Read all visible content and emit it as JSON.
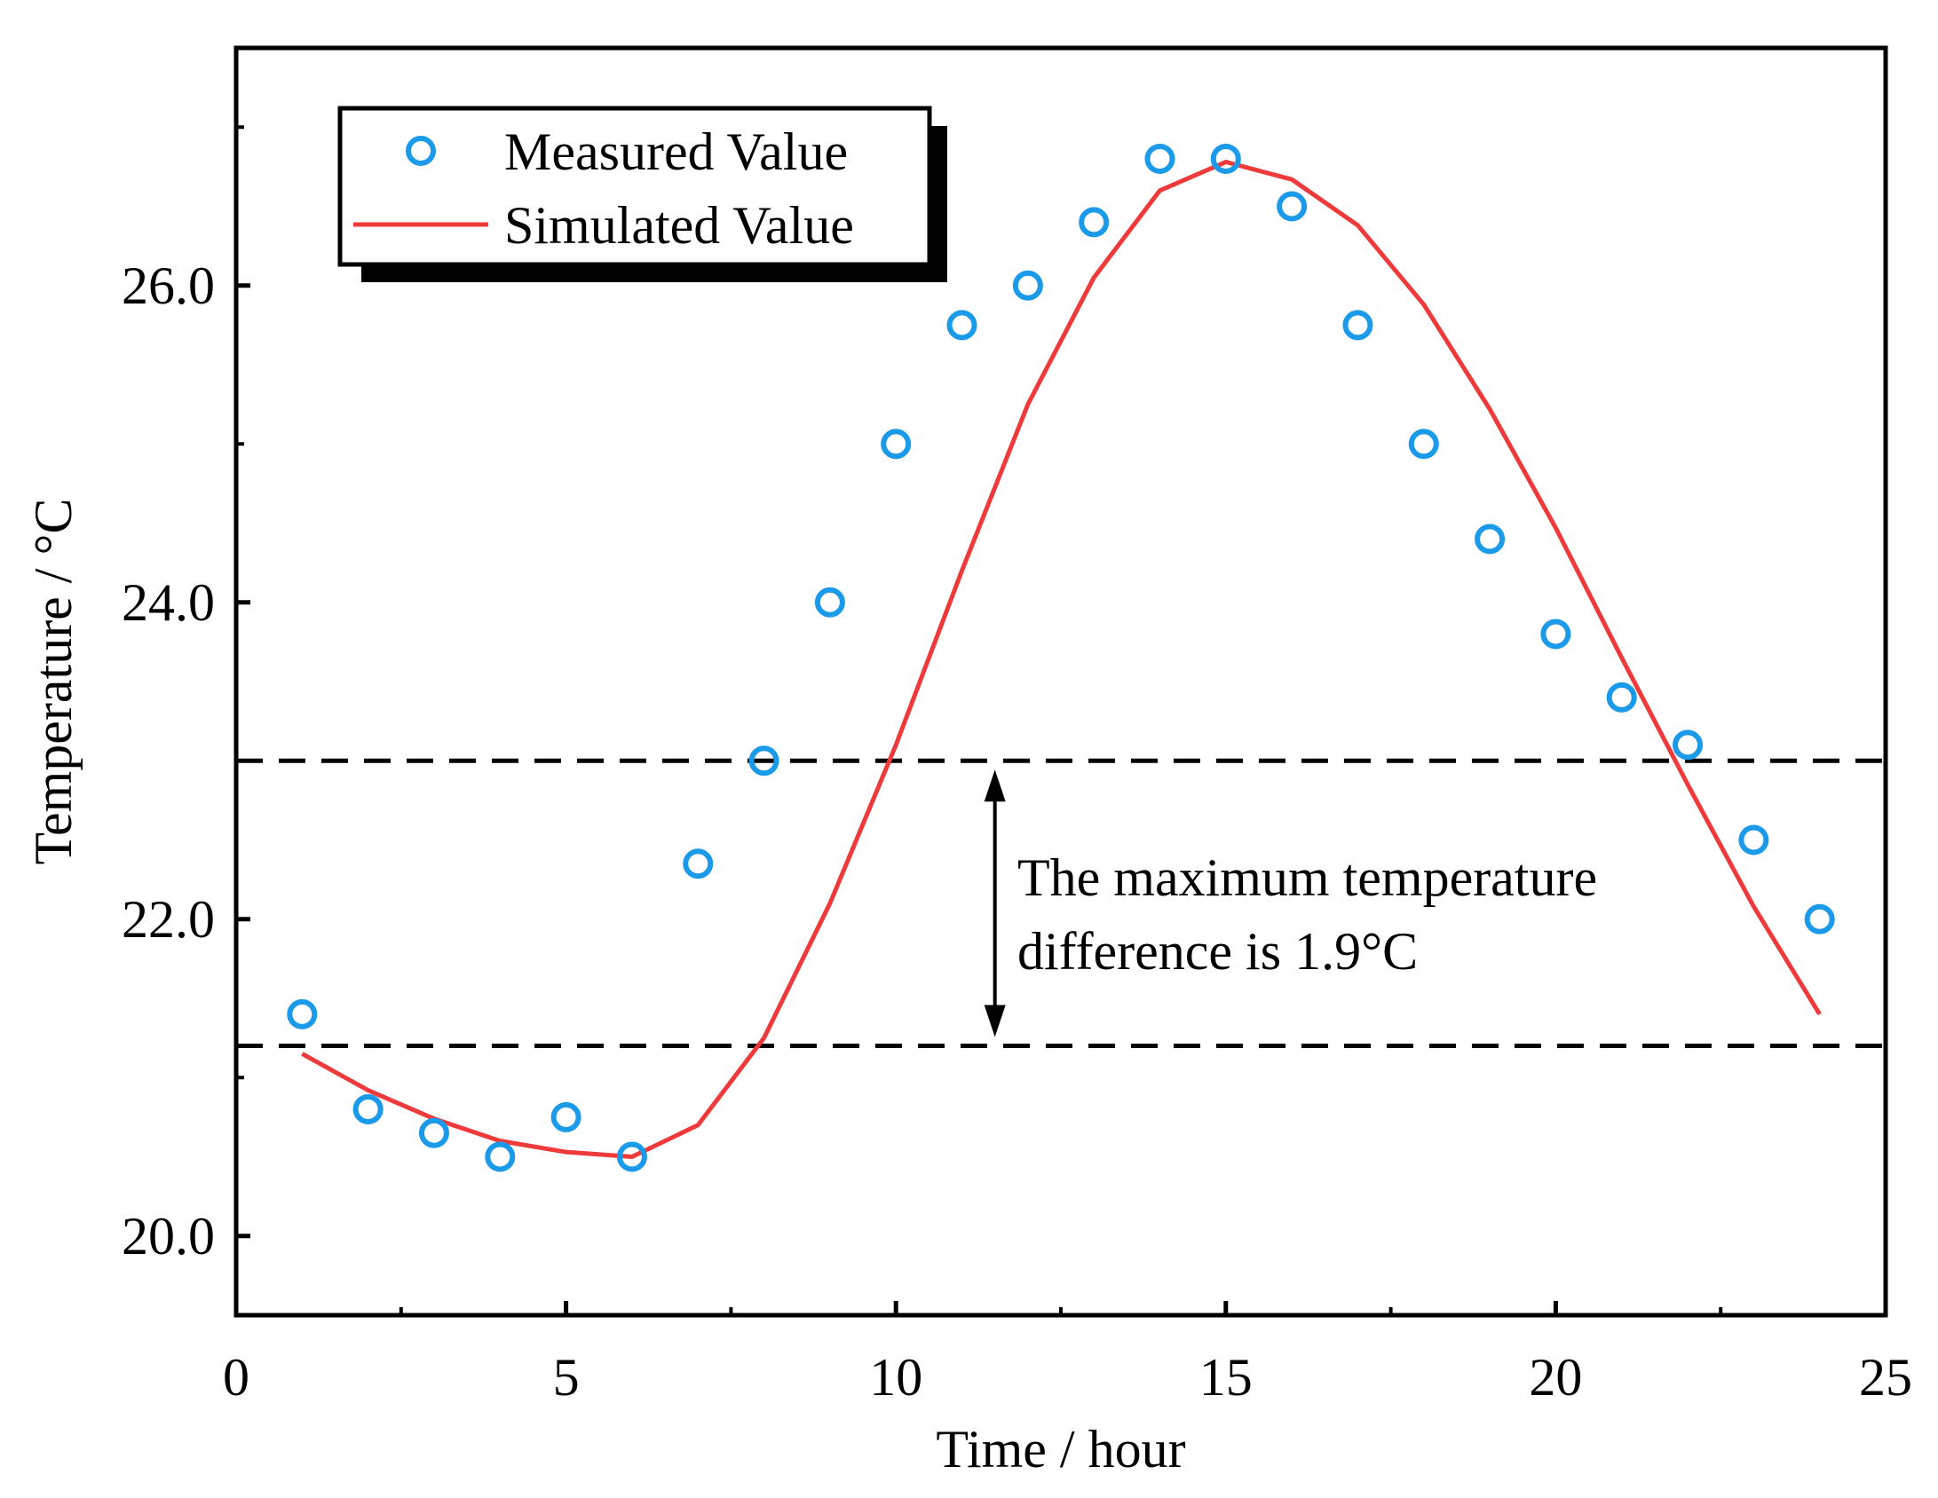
{
  "chart_data": {
    "type": "line",
    "xlabel": "Time / hour",
    "ylabel": "Temperature / °C",
    "xlim": [
      0,
      25
    ],
    "ylim": [
      19.5,
      27.5
    ],
    "x_ticks": [
      0,
      5,
      10,
      15,
      20,
      25
    ],
    "x_minor_ticks": [
      2.5,
      7.5,
      12.5,
      17.5,
      22.5
    ],
    "y_ticks": [
      20.0,
      22.0,
      24.0,
      26.0
    ],
    "y_tick_labels": [
      "20.0",
      "22.0",
      "24.0",
      "26.0"
    ],
    "y_minor_ticks": [
      21.0,
      23.0,
      25.0,
      27.0
    ],
    "grid": false,
    "legend": {
      "position": "top-left",
      "entries": [
        "Measured Value",
        "Simulated Value"
      ]
    },
    "series": [
      {
        "name": "Measured Value",
        "style": "markers",
        "color": "#1a9ae8",
        "x": [
          1,
          2,
          3,
          4,
          5,
          6,
          7,
          8,
          9,
          10,
          11,
          12,
          13,
          14,
          15,
          16,
          17,
          18,
          19,
          20,
          21,
          22,
          23,
          24
        ],
        "y": [
          21.4,
          20.8,
          20.65,
          20.5,
          20.75,
          20.5,
          22.35,
          23.0,
          24.0,
          25.0,
          25.75,
          26.0,
          26.4,
          26.8,
          26.8,
          26.5,
          25.75,
          25.0,
          24.4,
          23.8,
          23.4,
          23.1,
          22.5,
          22.0
        ]
      },
      {
        "name": "Simulated Value",
        "style": "line",
        "color": "#ee3a3a",
        "x": [
          1,
          2,
          3,
          4,
          5,
          6,
          7,
          8,
          9,
          10,
          11,
          12,
          13,
          14,
          15,
          16,
          17,
          18,
          19,
          20,
          21,
          22,
          23,
          24
        ],
        "y": [
          21.15,
          20.92,
          20.74,
          20.6,
          20.53,
          20.5,
          20.7,
          21.25,
          22.1,
          23.1,
          24.2,
          25.25,
          26.05,
          26.6,
          26.78,
          26.67,
          26.38,
          25.88,
          25.22,
          24.47,
          23.65,
          22.85,
          22.08,
          21.4
        ]
      }
    ],
    "reference_lines": [
      23.0,
      21.2
    ],
    "annotation": {
      "line1": "The maximum temperature",
      "line2": "difference is 1.9°C",
      "arrow_x": 11.5,
      "arrow_from": 21.2,
      "arrow_to": 23.0
    }
  }
}
